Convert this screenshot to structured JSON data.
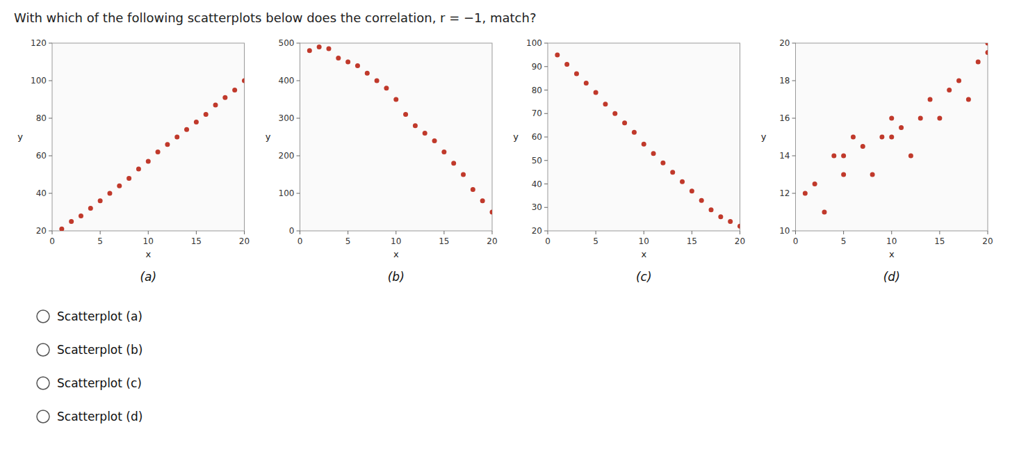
{
  "title": "With which of the following scatterplots below does the correlation, r = −1, match?",
  "annotations": [
    "Scatterplot (a)",
    "Scatterplot (b)",
    "Scatterplot (c)",
    "Scatterplot (d)"
  ],
  "chart_data": [
    {
      "type": "scatter",
      "title": "(a)",
      "xlabel": "x",
      "ylabel": "y",
      "color": "#c0392b",
      "grid": false,
      "xlim": [
        0,
        20
      ],
      "ylim": [
        20,
        120
      ],
      "xticks": [
        0,
        5,
        10,
        15,
        20
      ],
      "yticks": [
        20,
        40,
        60,
        80,
        100,
        120
      ],
      "x": [
        1,
        2,
        3,
        4,
        5,
        6,
        7,
        8,
        9,
        10,
        11,
        12,
        13,
        14,
        15,
        16,
        17,
        18,
        19,
        20
      ],
      "y": [
        21,
        25,
        28,
        32,
        36,
        40,
        44,
        48,
        53,
        57,
        62,
        66,
        70,
        74,
        78,
        82,
        87,
        91,
        95,
        100
      ]
    },
    {
      "type": "scatter",
      "title": "(b)",
      "xlabel": "x",
      "ylabel": "y",
      "color": "#c0392b",
      "grid": false,
      "xlim": [
        0,
        20
      ],
      "ylim": [
        0,
        500
      ],
      "xticks": [
        0,
        5,
        10,
        15,
        20
      ],
      "yticks": [
        0,
        100,
        200,
        300,
        400,
        500
      ],
      "x": [
        1,
        2,
        3,
        4,
        5,
        6,
        7,
        8,
        9,
        10,
        11,
        12,
        13,
        14,
        15,
        16,
        17,
        18,
        19,
        20
      ],
      "y": [
        480,
        490,
        485,
        460,
        450,
        440,
        420,
        400,
        380,
        350,
        310,
        280,
        260,
        240,
        210,
        180,
        150,
        110,
        80,
        50
      ]
    },
    {
      "type": "scatter",
      "title": "(c)",
      "xlabel": "x",
      "ylabel": "y",
      "color": "#c0392b",
      "grid": false,
      "xlim": [
        0,
        20
      ],
      "ylim": [
        20,
        100
      ],
      "xticks": [
        0,
        5,
        10,
        15,
        20
      ],
      "yticks": [
        20,
        30,
        40,
        50,
        60,
        70,
        80,
        90,
        100
      ],
      "x": [
        1,
        2,
        3,
        4,
        5,
        6,
        7,
        8,
        9,
        10,
        11,
        12,
        13,
        14,
        15,
        16,
        17,
        18,
        19,
        20
      ],
      "y": [
        95,
        91,
        87,
        83,
        79,
        74,
        70,
        66,
        62,
        57,
        53,
        49,
        45,
        41,
        37,
        33,
        29,
        26,
        24,
        22
      ]
    },
    {
      "type": "scatter",
      "title": "(d)",
      "xlabel": "x",
      "ylabel": "y",
      "color": "#c0392b",
      "grid": false,
      "xlim": [
        0,
        20
      ],
      "ylim": [
        10,
        20
      ],
      "xticks": [
        0,
        5,
        10,
        15,
        20
      ],
      "yticks": [
        10,
        12,
        14,
        16,
        18,
        20
      ],
      "x": [
        1,
        2,
        3,
        4,
        5,
        5,
        6,
        7,
        8,
        9,
        10,
        10,
        11,
        12,
        13,
        14,
        15,
        16,
        17,
        18,
        19,
        20,
        20
      ],
      "y": [
        12,
        12.5,
        11,
        14,
        13,
        14,
        15,
        14.5,
        13,
        15,
        15,
        16,
        15.5,
        14,
        16,
        17,
        16,
        17.5,
        18,
        17,
        19,
        19.5,
        20
      ]
    }
  ]
}
